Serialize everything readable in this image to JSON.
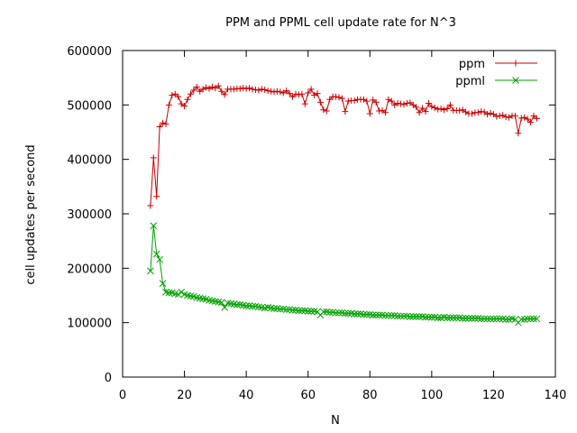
{
  "chart_data": {
    "type": "line",
    "title": "PPM and PPML cell update rate for N^3",
    "xlabel": "N",
    "ylabel": "cell updates per second",
    "xlim": [
      0,
      140
    ],
    "ylim": [
      0,
      600000
    ],
    "xticks": [
      0,
      20,
      40,
      60,
      80,
      100,
      120,
      140
    ],
    "yticks": [
      0,
      100000,
      200000,
      300000,
      400000,
      500000,
      600000
    ],
    "grid": false,
    "legend_position": "top-right",
    "series": [
      {
        "name": "ppm",
        "color": "#cc0000",
        "marker": "plus",
        "x": [
          9,
          10,
          11,
          12,
          13,
          14,
          15,
          16,
          17,
          18,
          19,
          20,
          21,
          22,
          23,
          24,
          25,
          26,
          27,
          28,
          29,
          30,
          31,
          32,
          33,
          34,
          35,
          36,
          37,
          38,
          39,
          40,
          41,
          42,
          43,
          44,
          45,
          46,
          47,
          48,
          49,
          50,
          51,
          52,
          53,
          54,
          55,
          56,
          57,
          58,
          59,
          60,
          61,
          62,
          63,
          64,
          65,
          66,
          67,
          68,
          69,
          70,
          71,
          72,
          73,
          74,
          75,
          76,
          77,
          78,
          79,
          80,
          81,
          82,
          83,
          84,
          85,
          86,
          87,
          88,
          89,
          90,
          91,
          92,
          93,
          94,
          95,
          96,
          97,
          98,
          99,
          100,
          101,
          102,
          103,
          104,
          105,
          106,
          107,
          108,
          109,
          110,
          111,
          112,
          113,
          114,
          115,
          116,
          117,
          118,
          119,
          120,
          121,
          122,
          123,
          124,
          125,
          126,
          127,
          128,
          129,
          130,
          131,
          132,
          133,
          134
        ],
        "values": [
          315000,
          403000,
          332000,
          460000,
          467000,
          465000,
          500000,
          518000,
          520000,
          515000,
          502000,
          498000,
          510000,
          520000,
          527000,
          533000,
          525000,
          529000,
          532000,
          530000,
          533000,
          531000,
          535000,
          525000,
          519000,
          529000,
          529000,
          529000,
          530000,
          530000,
          531000,
          530000,
          531000,
          529000,
          528000,
          527000,
          529000,
          528000,
          526000,
          525000,
          524000,
          525000,
          524000,
          522000,
          526000,
          521000,
          515000,
          520000,
          519000,
          520000,
          502000,
          522000,
          529000,
          518000,
          521000,
          505000,
          491000,
          489000,
          510000,
          515000,
          515000,
          514000,
          512000,
          488000,
          507000,
          508000,
          508000,
          510000,
          510000,
          510000,
          507000,
          484000,
          509000,
          505000,
          489000,
          490000,
          486000,
          510000,
          507000,
          500000,
          503000,
          502000,
          501000,
          503000,
          504000,
          500000,
          496000,
          486000,
          494000,
          488000,
          503000,
          497000,
          495000,
          492000,
          493000,
          491000,
          493000,
          500000,
          490000,
          490000,
          490000,
          491000,
          487000,
          484000,
          484000,
          486000,
          486000,
          488000,
          487000,
          483000,
          485000,
          483000,
          479000,
          480000,
          481000,
          478000,
          477000,
          480000,
          480000,
          448000,
          476000,
          477000,
          474000,
          468000,
          480000,
          475000
        ]
      },
      {
        "name": "ppml",
        "color": "#00a000",
        "marker": "cross",
        "x": [
          9,
          10,
          11,
          12,
          13,
          14,
          15,
          16,
          17,
          18,
          19,
          20,
          21,
          22,
          23,
          24,
          25,
          26,
          27,
          28,
          29,
          30,
          31,
          32,
          33,
          34,
          35,
          36,
          37,
          38,
          39,
          40,
          41,
          42,
          43,
          44,
          45,
          46,
          47,
          48,
          49,
          50,
          51,
          52,
          53,
          54,
          55,
          56,
          57,
          58,
          59,
          60,
          61,
          62,
          63,
          64,
          65,
          66,
          67,
          68,
          69,
          70,
          71,
          72,
          73,
          74,
          75,
          76,
          77,
          78,
          79,
          80,
          81,
          82,
          83,
          84,
          85,
          86,
          87,
          88,
          89,
          90,
          91,
          92,
          93,
          94,
          95,
          96,
          97,
          98,
          99,
          100,
          101,
          102,
          103,
          104,
          105,
          106,
          107,
          108,
          109,
          110,
          111,
          112,
          113,
          114,
          115,
          116,
          117,
          118,
          119,
          120,
          121,
          122,
          123,
          124,
          125,
          126,
          127,
          128,
          129,
          130,
          131,
          132,
          133,
          134
        ],
        "values": [
          195000,
          278000,
          226000,
          216000,
          172000,
          156000,
          155000,
          155000,
          153000,
          152000,
          156000,
          152000,
          150000,
          149000,
          148000,
          146000,
          145000,
          144000,
          143000,
          141000,
          140000,
          139000,
          138000,
          137000,
          128000,
          136000,
          135000,
          134000,
          133000,
          133000,
          132000,
          131000,
          131000,
          130000,
          130000,
          129000,
          128000,
          127000,
          128000,
          127000,
          126000,
          126000,
          125000,
          125000,
          124000,
          124000,
          123000,
          123000,
          122000,
          122000,
          122000,
          121000,
          121000,
          121000,
          120000,
          114000,
          120000,
          120000,
          119000,
          119000,
          118000,
          118000,
          118000,
          117000,
          117000,
          117000,
          116000,
          116000,
          116000,
          115000,
          115000,
          115000,
          114000,
          114000,
          114000,
          114000,
          113000,
          113000,
          113000,
          113000,
          112000,
          112000,
          112000,
          112000,
          111000,
          111000,
          111000,
          111000,
          111000,
          110000,
          110000,
          110000,
          110000,
          109000,
          109000,
          110000,
          109000,
          109000,
          109000,
          109000,
          109000,
          108000,
          108000,
          108000,
          108000,
          108000,
          108000,
          107000,
          107000,
          107000,
          107000,
          107000,
          107000,
          107000,
          107000,
          106000,
          106000,
          107000,
          106000,
          100000,
          106000,
          106000,
          107000,
          107000,
          107000,
          107000
        ]
      }
    ]
  }
}
